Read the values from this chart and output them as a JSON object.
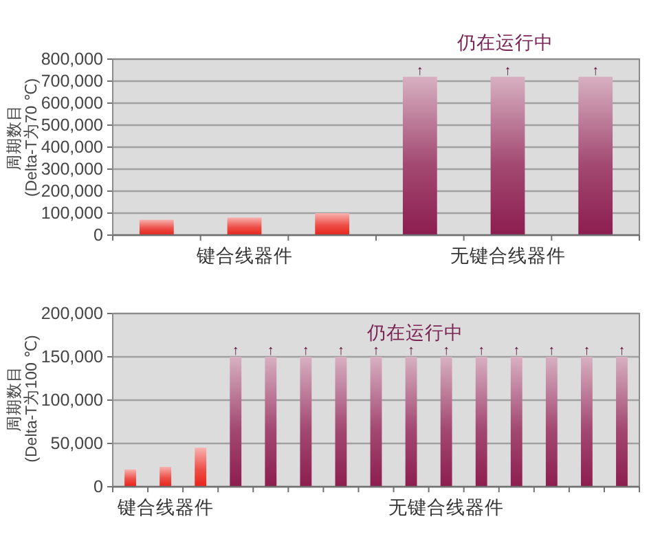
{
  "chart_data": [
    {
      "type": "bar",
      "categories": [
        null,
        "键合线器件",
        null,
        null,
        "无键合线器件",
        null
      ],
      "values": [
        70000,
        80000,
        100000,
        720000,
        720000,
        720000
      ],
      "colors": [
        "#e8231a",
        "#e8231a",
        "#e8231a",
        "#8c1d4f",
        "#8c1d4f",
        "#8c1d4f"
      ],
      "value_labels": [
        null,
        null,
        null,
        "↑",
        "↑",
        "↑"
      ],
      "ylabel": "周期数目\n(Delta-T为70 ℃)",
      "annotations": [
        "仍在运行中"
      ],
      "ylim": [
        0,
        800000
      ],
      "yticks": [
        0,
        {
          "value": 100000,
          "label": "100,000"
        },
        {
          "value": 200000,
          "label": "200,000"
        },
        {
          "value": 300000,
          "label": "300,000"
        },
        {
          "value": 400000,
          "label": "400,000"
        },
        {
          "value": 500000,
          "label": "500,000"
        },
        {
          "value": 600000,
          "label": "600,000"
        },
        {
          "value": 700000,
          "label": "700,000"
        },
        {
          "value": 800000,
          "label": "800,000"
        }
      ],
      "grid": "y"
    },
    {
      "type": "bar",
      "categories": [
        null,
        "键合线器件",
        null,
        null,
        null,
        null,
        null,
        null,
        null,
        "无键合线器件",
        null,
        null,
        null,
        null,
        null
      ],
      "values": [
        20000,
        23000,
        45000,
        150000,
        150000,
        150000,
        150000,
        150000,
        150000,
        150000,
        150000,
        150000,
        150000,
        150000,
        150000
      ],
      "colors": [
        "#e8231a",
        "#e8231a",
        "#e8231a",
        "#8c1d4f",
        "#8c1d4f",
        "#8c1d4f",
        "#8c1d4f",
        "#8c1d4f",
        "#8c1d4f",
        "#8c1d4f",
        "#8c1d4f",
        "#8c1d4f",
        "#8c1d4f",
        "#8c1d4f",
        "#8c1d4f"
      ],
      "value_labels": [
        null,
        null,
        null,
        "↑",
        "↑",
        "↑",
        "↑",
        "↑",
        "↑",
        "↑",
        "↑",
        "↑",
        "↑",
        "↑",
        "↑"
      ],
      "ylabel": "周期数目\n(Delta-T为100 ℃)",
      "annotations": [
        "仍在运行中"
      ],
      "ylim": [
        0,
        200000
      ],
      "yticks": [
        0,
        {
          "value": 50000,
          "label": "50,000"
        },
        {
          "value": 100000,
          "label": "100,000"
        },
        {
          "value": 150000,
          "label": "150,000"
        },
        {
          "value": 200000,
          "label": "200,000"
        }
      ],
      "grid": "y"
    }
  ]
}
